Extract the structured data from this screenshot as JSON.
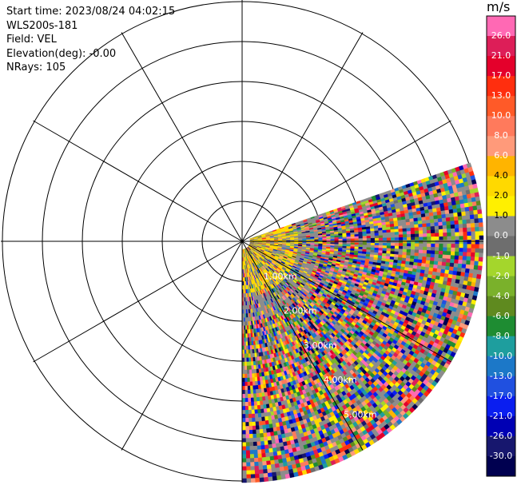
{
  "info": {
    "start_time": "Start time: 2023/08/24 04:02:15",
    "instrument": "WLS200s-181",
    "field": "Field: VEL",
    "elevation": "Elevation(deg): -0.00",
    "nrays": "NRays: 105"
  },
  "colorbar": {
    "unit": "m/s",
    "labels": [
      "26.0",
      "21.0",
      "17.0",
      "13.0",
      "10.0",
      "8.0",
      "6.0",
      "4.0",
      "2.0",
      "1.0",
      "0.0",
      "-1.0",
      "-2.0",
      "-4.0",
      "-6.0",
      "-8.0",
      "-10.0",
      "-13.0",
      "-17.0",
      "-21.0",
      "-26.0",
      "-30.0"
    ],
    "colors": [
      "#ff69b4",
      "#dd1e58",
      "#e4002b",
      "#ff2e0e",
      "#ff5a28",
      "#ff7a5c",
      "#ff9a7a",
      "#ffb400",
      "#ffd900",
      "#fff000",
      "#8c8c8c",
      "#6e6e6e",
      "#a4d62c",
      "#7ab12b",
      "#5f8a1f",
      "#1e8c32",
      "#1e9e9e",
      "#1c78c8",
      "#2050e0",
      "#0a1ef0",
      "#0000b4",
      "#17176e",
      "#000050"
    ]
  },
  "chart_data": {
    "type": "polar_ppi",
    "field": "VEL",
    "nrays": 105,
    "units": "m/s",
    "range_ring_labels": [
      "1.00km",
      "2.00km",
      "3.00km",
      "4.00km",
      "5.00km"
    ],
    "sector_azimuth_deg": [
      90,
      180
    ],
    "range_max_km": 6
  }
}
